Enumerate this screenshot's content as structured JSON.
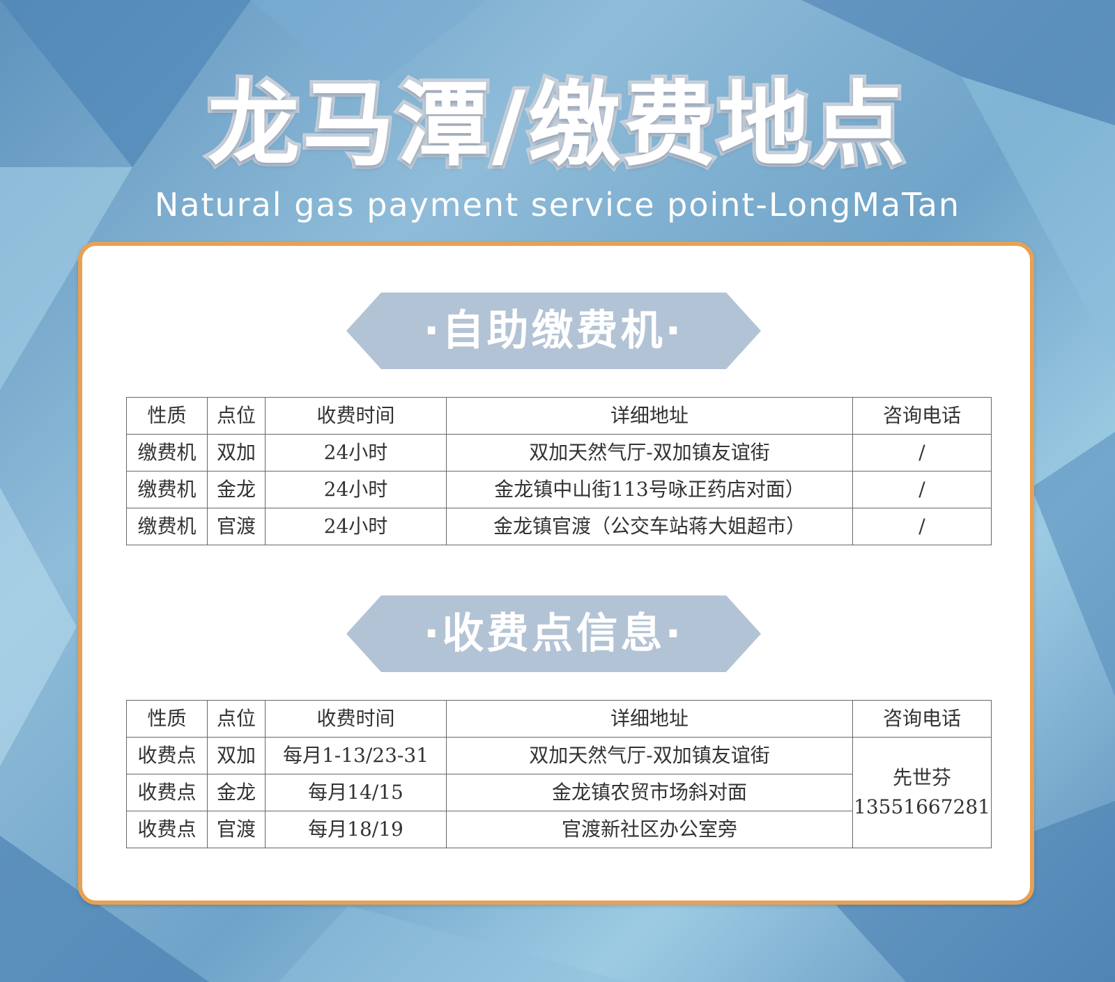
{
  "header": {
    "title": "龙马潭/缴费地点",
    "subtitle": "Natural gas payment service point-LongMaTan"
  },
  "colors": {
    "card_border": "#e6a154",
    "banner": "#b3c3d6",
    "background": "#6fa3c8"
  },
  "section1": {
    "banner": "·自助缴费机·",
    "headers": [
      "性质",
      "点位",
      "收费时间",
      "详细地址",
      "咨询电话"
    ],
    "rows": [
      [
        "缴费机",
        "双加",
        "24小时",
        "双加天然气厅-双加镇友谊街",
        "/"
      ],
      [
        "缴费机",
        "金龙",
        "24小时",
        "金龙镇中山街113号咏正药店对面）",
        "/"
      ],
      [
        "缴费机",
        "官渡",
        "24小时",
        "金龙镇官渡（公交车站蒋大姐超市）",
        "/"
      ]
    ]
  },
  "section2": {
    "banner": "·收费点信息·",
    "headers": [
      "性质",
      "点位",
      "收费时间",
      "详细地址",
      "咨询电话"
    ],
    "rows": [
      [
        "收费点",
        "双加",
        "每月1-13/23-31",
        "双加天然气厅-双加镇友谊街"
      ],
      [
        "收费点",
        "金龙",
        "每月14/15",
        "金龙镇农贸市场斜对面"
      ],
      [
        "收费点",
        "官渡",
        "每月18/19",
        "官渡新社区办公室旁"
      ]
    ],
    "contact_name": "先世芬",
    "contact_phone": "13551667281"
  }
}
